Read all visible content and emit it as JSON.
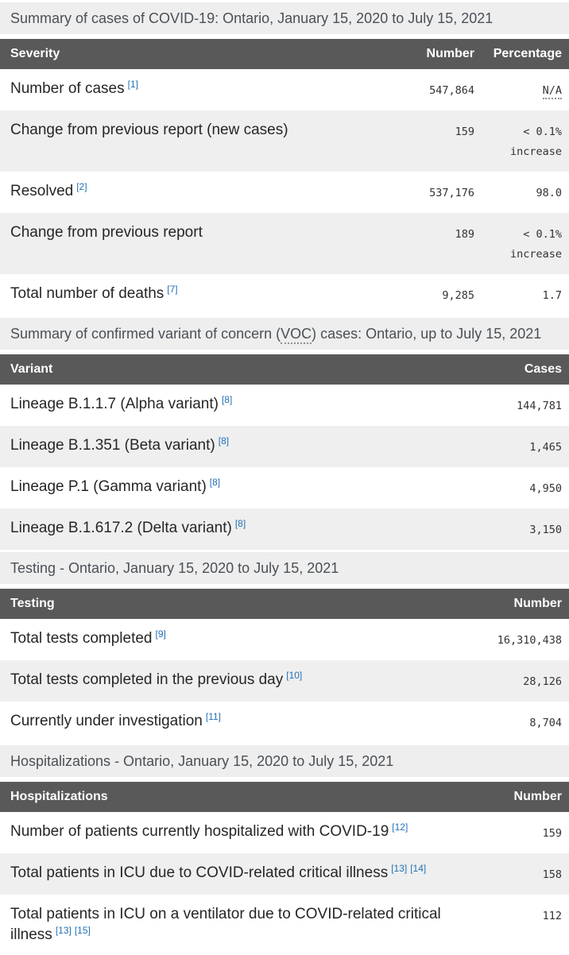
{
  "theme": {
    "table_header_bg": "#595959",
    "table_header_text": "#ffffff",
    "section_band_bg": "#eeeeee",
    "zebra_row_bg": "#efefef",
    "footnote_link_color": "#2470b5",
    "label_text_color": "#262626"
  },
  "sections": [
    {
      "name": "severity",
      "heading": "Summary of cases of COVID-19: Ontario, January 15, 2020 to July 15, 2021",
      "table": {
        "columns": [
          "Severity",
          "Number",
          "Percentage"
        ],
        "rows": [
          {
            "label": "Number of cases",
            "refs": [
              "[1]"
            ],
            "number": "547,864",
            "percentage": "N/A",
            "percentage_abbr": true
          },
          {
            "label": "Change from previous report (new cases)",
            "refs": [],
            "number": "159",
            "percentage": "< 0.1% increase"
          },
          {
            "label": "Resolved",
            "refs": [
              "[2]"
            ],
            "number": "537,176",
            "percentage": "98.0"
          },
          {
            "label": "Change from previous report",
            "refs": [],
            "number": "189",
            "percentage": "< 0.1% increase"
          },
          {
            "label": "Total number of deaths",
            "refs": [
              "[7]"
            ],
            "number": "9,285",
            "percentage": "1.7"
          }
        ]
      }
    },
    {
      "name": "variant",
      "heading_parts": {
        "prefix": "Summary of confirmed variant of concern (",
        "abbr": "VOC",
        "suffix": ") cases: Ontario, up to July 15, 2021"
      },
      "table": {
        "columns": [
          "Variant",
          "Cases"
        ],
        "rows": [
          {
            "label": "Lineage B.1.1.7 (Alpha variant)",
            "refs": [
              "[8]"
            ],
            "number": "144,781"
          },
          {
            "label": "Lineage B.1.351 (Beta variant)",
            "refs": [
              "[8]"
            ],
            "number": "1,465"
          },
          {
            "label": "Lineage P.1 (Gamma variant)",
            "refs": [
              "[8]"
            ],
            "number": "4,950"
          },
          {
            "label": "Lineage B.1.617.2 (Delta variant)",
            "refs": [
              "[8]"
            ],
            "number": "3,150"
          }
        ]
      }
    },
    {
      "name": "testing",
      "heading": "Testing - Ontario, January 15, 2020 to July 15, 2021",
      "table": {
        "columns": [
          "Testing",
          "Number"
        ],
        "rows": [
          {
            "label": "Total tests completed",
            "refs": [
              "[9]"
            ],
            "number": "16,310,438"
          },
          {
            "label": "Total tests completed in the previous day",
            "refs": [
              "[10]"
            ],
            "number": "28,126"
          },
          {
            "label": "Currently under investigation",
            "refs": [
              "[11]"
            ],
            "number": "8,704"
          }
        ]
      }
    },
    {
      "name": "hospitalizations",
      "heading": "Hospitalizations - Ontario, January 15, 2020 to July 15, 2021",
      "table": {
        "columns": [
          "Hospitalizations",
          "Number"
        ],
        "rows": [
          {
            "label": "Number of patients currently hospitalized with COVID-19",
            "refs": [
              "[12]"
            ],
            "number": "159"
          },
          {
            "label": "Total patients in ICU due to COVID-related critical illness",
            "refs": [
              "[13]",
              "[14]"
            ],
            "number": "158"
          },
          {
            "label": "Total patients in ICU on a ventilator due to COVID-related critical illness",
            "refs": [
              "[13]",
              "[15]"
            ],
            "number": "112"
          }
        ]
      }
    }
  ]
}
